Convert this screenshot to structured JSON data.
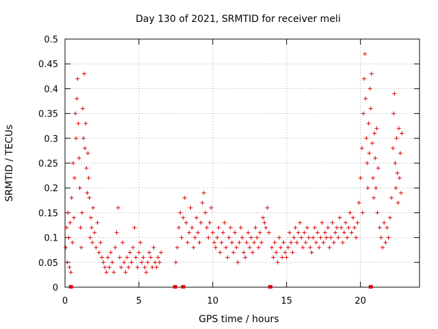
{
  "chart_data": {
    "type": "scatter",
    "title": "Day 130 of 2021, SRMTID for receiver meli",
    "xlabel": "GPS time / hours",
    "ylabel": "SRMTID / TECUs",
    "xlim": [
      0,
      24
    ],
    "ylim": [
      0,
      0.5
    ],
    "x_ticks": [
      0,
      5,
      10,
      15,
      20
    ],
    "x_tick_labels": [
      "0",
      "5",
      "10",
      "15",
      "20"
    ],
    "y_ticks": [
      0,
      0.05,
      0.1,
      0.15,
      0.2,
      0.25,
      0.3,
      0.35,
      0.4,
      0.45,
      0.5
    ],
    "y_tick_labels": [
      "0",
      "0.05",
      "0.1",
      "0.15",
      "0.2",
      "0.25",
      "0.3",
      "0.35",
      "0.4",
      "0.45",
      "0.5"
    ],
    "grid": true,
    "marker": "+",
    "color": "#dd0000",
    "series": [
      {
        "name": "SRMTID",
        "points": [
          [
            0.05,
            0.08
          ],
          [
            0.1,
            0.12
          ],
          [
            0.15,
            0.05
          ],
          [
            0.2,
            0.15
          ],
          [
            0.25,
            0.1
          ],
          [
            0.3,
            0.04
          ],
          [
            0.35,
            0.13
          ],
          [
            0.4,
            0.03
          ],
          [
            0.45,
            0.18
          ],
          [
            0.5,
            0.09
          ],
          [
            0.55,
            0.25
          ],
          [
            0.6,
            0.14
          ],
          [
            0.65,
            0.22
          ],
          [
            0.7,
            0.35
          ],
          [
            0.75,
            0.3
          ],
          [
            0.8,
            0.38
          ],
          [
            0.85,
            0.42
          ],
          [
            0.9,
            0.33
          ],
          [
            0.95,
            0.26
          ],
          [
            1.0,
            0.2
          ],
          [
            1.05,
            0.12
          ],
          [
            1.1,
            0.08
          ],
          [
            1.15,
            0.15
          ],
          [
            1.2,
            0.36
          ],
          [
            1.25,
            0.3
          ],
          [
            1.3,
            0.43
          ],
          [
            1.35,
            0.28
          ],
          [
            1.4,
            0.33
          ],
          [
            1.45,
            0.24
          ],
          [
            1.5,
            0.19
          ],
          [
            1.55,
            0.27
          ],
          [
            1.6,
            0.22
          ],
          [
            1.65,
            0.18
          ],
          [
            1.7,
            0.1
          ],
          [
            1.75,
            0.14
          ],
          [
            1.8,
            0.12
          ],
          [
            1.85,
            0.09
          ],
          [
            1.9,
            0.16
          ],
          [
            2.0,
            0.11
          ],
          [
            2.1,
            0.08
          ],
          [
            2.2,
            0.13
          ],
          [
            2.3,
            0.07
          ],
          [
            2.4,
            0.09
          ],
          [
            2.5,
            0.06
          ],
          [
            2.6,
            0.05
          ],
          [
            2.7,
            0.04
          ],
          [
            2.8,
            0.03
          ],
          [
            2.9,
            0.06
          ],
          [
            3.0,
            0.04
          ],
          [
            3.1,
            0.07
          ],
          [
            3.2,
            0.05
          ],
          [
            3.3,
            0.03
          ],
          [
            3.4,
            0.08
          ],
          [
            3.5,
            0.11
          ],
          [
            3.6,
            0.16
          ],
          [
            3.7,
            0.06
          ],
          [
            3.8,
            0.04
          ],
          [
            3.9,
            0.09
          ],
          [
            4.0,
            0.05
          ],
          [
            4.1,
            0.03
          ],
          [
            4.2,
            0.06
          ],
          [
            4.3,
            0.04
          ],
          [
            4.4,
            0.07
          ],
          [
            4.5,
            0.05
          ],
          [
            4.6,
            0.08
          ],
          [
            4.7,
            0.12
          ],
          [
            4.8,
            0.06
          ],
          [
            4.9,
            0.04
          ],
          [
            5.0,
            0.07
          ],
          [
            5.1,
            0.09
          ],
          [
            5.2,
            0.05
          ],
          [
            5.3,
            0.06
          ],
          [
            5.4,
            0.04
          ],
          [
            5.5,
            0.03
          ],
          [
            5.6,
            0.05
          ],
          [
            5.7,
            0.07
          ],
          [
            5.8,
            0.06
          ],
          [
            5.9,
            0.04
          ],
          [
            6.0,
            0.08
          ],
          [
            6.1,
            0.05
          ],
          [
            6.2,
            0.04
          ],
          [
            6.3,
            0.06
          ],
          [
            6.4,
            0.05
          ],
          [
            6.5,
            0.07
          ],
          [
            7.5,
            0.05
          ],
          [
            7.6,
            0.08
          ],
          [
            7.7,
            0.12
          ],
          [
            7.8,
            0.15
          ],
          [
            7.9,
            0.1
          ],
          [
            8.0,
            0.14
          ],
          [
            8.1,
            0.18
          ],
          [
            8.2,
            0.13
          ],
          [
            8.3,
            0.09
          ],
          [
            8.4,
            0.11
          ],
          [
            8.5,
            0.16
          ],
          [
            8.6,
            0.12
          ],
          [
            8.7,
            0.08
          ],
          [
            8.8,
            0.1
          ],
          [
            8.9,
            0.14
          ],
          [
            9.0,
            0.11
          ],
          [
            9.1,
            0.09
          ],
          [
            9.2,
            0.13
          ],
          [
            9.3,
            0.17
          ],
          [
            9.4,
            0.19
          ],
          [
            9.5,
            0.15
          ],
          [
            9.6,
            0.12
          ],
          [
            9.7,
            0.1
          ],
          [
            9.8,
            0.13
          ],
          [
            9.9,
            0.16
          ],
          [
            10.0,
            0.11
          ],
          [
            10.1,
            0.09
          ],
          [
            10.2,
            0.08
          ],
          [
            10.3,
            0.1
          ],
          [
            10.4,
            0.12
          ],
          [
            10.5,
            0.07
          ],
          [
            10.6,
            0.09
          ],
          [
            10.7,
            0.11
          ],
          [
            10.8,
            0.13
          ],
          [
            10.9,
            0.08
          ],
          [
            11.0,
            0.06
          ],
          [
            11.1,
            0.1
          ],
          [
            11.2,
            0.12
          ],
          [
            11.3,
            0.09
          ],
          [
            11.4,
            0.07
          ],
          [
            11.5,
            0.11
          ],
          [
            11.6,
            0.08
          ],
          [
            11.7,
            0.05
          ],
          [
            11.8,
            0.09
          ],
          [
            11.9,
            0.12
          ],
          [
            12.0,
            0.1
          ],
          [
            12.1,
            0.07
          ],
          [
            12.2,
            0.06
          ],
          [
            12.3,
            0.09
          ],
          [
            12.4,
            0.11
          ],
          [
            12.5,
            0.08
          ],
          [
            12.6,
            0.1
          ],
          [
            12.7,
            0.07
          ],
          [
            12.8,
            0.09
          ],
          [
            12.9,
            0.12
          ],
          [
            13.0,
            0.1
          ],
          [
            13.1,
            0.08
          ],
          [
            13.2,
            0.11
          ],
          [
            13.3,
            0.09
          ],
          [
            13.4,
            0.14
          ],
          [
            13.5,
            0.13
          ],
          [
            13.6,
            0.12
          ],
          [
            13.7,
            0.16
          ],
          [
            13.8,
            0.11
          ],
          [
            14.0,
            0.08
          ],
          [
            14.1,
            0.06
          ],
          [
            14.2,
            0.09
          ],
          [
            14.3,
            0.07
          ],
          [
            14.4,
            0.05
          ],
          [
            14.5,
            0.1
          ],
          [
            14.6,
            0.08
          ],
          [
            14.7,
            0.06
          ],
          [
            14.8,
            0.09
          ],
          [
            14.9,
            0.07
          ],
          [
            15.0,
            0.06
          ],
          [
            15.1,
            0.08
          ],
          [
            15.2,
            0.11
          ],
          [
            15.3,
            0.09
          ],
          [
            15.4,
            0.07
          ],
          [
            15.5,
            0.1
          ],
          [
            15.6,
            0.12
          ],
          [
            15.7,
            0.09
          ],
          [
            15.8,
            0.11
          ],
          [
            15.9,
            0.13
          ],
          [
            16.0,
            0.1
          ],
          [
            16.1,
            0.08
          ],
          [
            16.2,
            0.11
          ],
          [
            16.3,
            0.09
          ],
          [
            16.4,
            0.12
          ],
          [
            16.5,
            0.1
          ],
          [
            16.6,
            0.08
          ],
          [
            16.7,
            0.07
          ],
          [
            16.8,
            0.1
          ],
          [
            16.9,
            0.12
          ],
          [
            17.0,
            0.09
          ],
          [
            17.1,
            0.11
          ],
          [
            17.2,
            0.08
          ],
          [
            17.3,
            0.1
          ],
          [
            17.4,
            0.13
          ],
          [
            17.5,
            0.09
          ],
          [
            17.6,
            0.11
          ],
          [
            17.7,
            0.1
          ],
          [
            17.8,
            0.12
          ],
          [
            17.9,
            0.08
          ],
          [
            18.0,
            0.1
          ],
          [
            18.1,
            0.13
          ],
          [
            18.2,
            0.09
          ],
          [
            18.3,
            0.11
          ],
          [
            18.4,
            0.12
          ],
          [
            18.5,
            0.1
          ],
          [
            18.6,
            0.14
          ],
          [
            18.7,
            0.12
          ],
          [
            18.8,
            0.09
          ],
          [
            18.9,
            0.11
          ],
          [
            19.0,
            0.13
          ],
          [
            19.1,
            0.1
          ],
          [
            19.2,
            0.12
          ],
          [
            19.3,
            0.15
          ],
          [
            19.4,
            0.11
          ],
          [
            19.5,
            0.14
          ],
          [
            19.6,
            0.12
          ],
          [
            19.7,
            0.1
          ],
          [
            19.8,
            0.13
          ],
          [
            19.9,
            0.17
          ],
          [
            20.0,
            0.22
          ],
          [
            20.1,
            0.28
          ],
          [
            20.15,
            0.15
          ],
          [
            20.2,
            0.35
          ],
          [
            20.25,
            0.42
          ],
          [
            20.3,
            0.47
          ],
          [
            20.35,
            0.38
          ],
          [
            20.4,
            0.3
          ],
          [
            20.45,
            0.25
          ],
          [
            20.5,
            0.2
          ],
          [
            20.55,
            0.33
          ],
          [
            20.6,
            0.27
          ],
          [
            20.65,
            0.4
          ],
          [
            20.7,
            0.36
          ],
          [
            20.75,
            0.43
          ],
          [
            20.8,
            0.29
          ],
          [
            20.85,
            0.22
          ],
          [
            20.9,
            0.18
          ],
          [
            20.95,
            0.31
          ],
          [
            21.0,
            0.26
          ],
          [
            21.05,
            0.2
          ],
          [
            21.1,
            0.32
          ],
          [
            21.15,
            0.15
          ],
          [
            21.2,
            0.24
          ],
          [
            21.3,
            0.12
          ],
          [
            21.4,
            0.1
          ],
          [
            21.5,
            0.08
          ],
          [
            21.6,
            0.13
          ],
          [
            21.7,
            0.09
          ],
          [
            21.8,
            0.12
          ],
          [
            21.9,
            0.1
          ],
          [
            22.0,
            0.14
          ],
          [
            22.1,
            0.18
          ],
          [
            22.2,
            0.28
          ],
          [
            22.25,
            0.35
          ],
          [
            22.3,
            0.39
          ],
          [
            22.35,
            0.25
          ],
          [
            22.4,
            0.2
          ],
          [
            22.45,
            0.3
          ],
          [
            22.5,
            0.23
          ],
          [
            22.55,
            0.17
          ],
          [
            22.6,
            0.32
          ],
          [
            22.65,
            0.22
          ],
          [
            22.7,
            0.27
          ],
          [
            22.75,
            0.19
          ],
          [
            22.8,
            0.31
          ]
        ]
      }
    ],
    "gap_markers_x": [
      0.4,
      7.45,
      8.0,
      13.9,
      20.7
    ]
  }
}
